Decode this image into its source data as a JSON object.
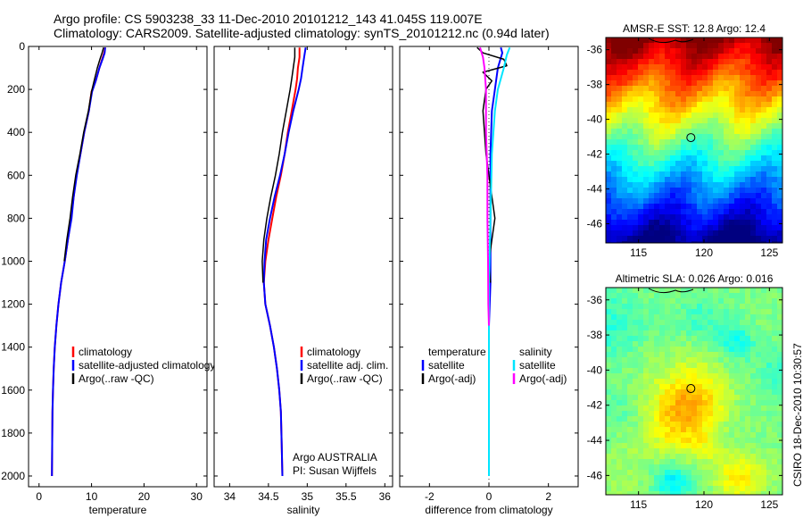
{
  "header": {
    "title_line1": "Argo profile: CS 5903238_33 11-Dec-2010 20101212_143 41.045S 119.007E",
    "title_line2": "Climatology: CARS2009. Satellite-adjusted climatology: synTS_20101212.nc (0.94d later)"
  },
  "side_label": "CSIRO 18-Dec-2010 10:30:57",
  "colors": {
    "climatology": "#ff0000",
    "satellite": "#0000ff",
    "argo": "#000000",
    "sat_diff": "#00e5ff",
    "argo_diff": "#ff00ff"
  },
  "chart_data": [
    {
      "type": "line",
      "xlabel": "temperature",
      "xlim": [
        -2,
        32
      ],
      "xticks": [
        0,
        10,
        20,
        30
      ],
      "ylim": [
        2050,
        0
      ],
      "yticks": [
        0,
        200,
        400,
        600,
        800,
        1000,
        1200,
        1400,
        1600,
        1800,
        2000
      ],
      "legend": [
        "climatology",
        "satellite-adjusted climatology",
        "Argo(..raw -QC)"
      ],
      "series": [
        {
          "name": "climatology",
          "color": "#ff0000",
          "width": 2,
          "x": [
            12.6,
            12.4,
            12.0,
            11.5,
            10.8,
            10.0,
            9.5,
            8.6,
            7.9,
            7.1,
            6.6,
            6.1,
            5.5,
            4.9,
            4.2,
            3.7,
            3.3,
            3.0,
            2.8,
            2.65,
            2.55,
            2.5,
            2.45
          ],
          "y": [
            5,
            30,
            60,
            100,
            160,
            210,
            300,
            400,
            500,
            600,
            700,
            800,
            900,
            1000,
            1100,
            1200,
            1300,
            1400,
            1500,
            1600,
            1700,
            1850,
            2000
          ]
        },
        {
          "name": "satellite-adjusted climatology",
          "color": "#0000ff",
          "width": 2,
          "x": [
            12.6,
            12.5,
            12.1,
            11.5,
            10.8,
            10.1,
            9.5,
            8.6,
            7.9,
            7.2,
            6.6,
            6.2,
            5.5,
            4.9,
            4.2,
            3.7,
            3.3,
            3.0,
            2.8,
            2.65,
            2.55,
            2.5,
            2.45
          ],
          "y": [
            5,
            30,
            60,
            100,
            160,
            210,
            300,
            400,
            500,
            600,
            700,
            800,
            900,
            1000,
            1100,
            1200,
            1300,
            1400,
            1500,
            1600,
            1700,
            1850,
            2000
          ]
        },
        {
          "name": "Argo(..raw -QC)",
          "color": "#000000",
          "width": 1.5,
          "x": [
            12.3,
            12.0,
            11.6,
            11.1,
            10.5,
            10.0,
            9.4,
            8.5,
            7.8,
            7.0,
            6.4,
            5.9,
            5.3,
            4.8
          ],
          "y": [
            5,
            30,
            60,
            100,
            160,
            210,
            300,
            400,
            500,
            600,
            700,
            800,
            900,
            1000
          ]
        }
      ]
    },
    {
      "type": "line",
      "xlabel": "salinity",
      "xlim": [
        33.8,
        36.1
      ],
      "xticks": [
        34,
        34.5,
        35,
        35.5,
        36
      ],
      "ylim": [
        2050,
        0
      ],
      "yticks": [
        0,
        200,
        400,
        600,
        800,
        1000,
        1200,
        1400,
        1600,
        1800,
        2000
      ],
      "legend": [
        "climatology",
        "satellite adj. clim.",
        "Argo(..raw -QC)"
      ],
      "annotation": [
        "Argo AUSTRALIA",
        "PI: Susan Wijffels"
      ],
      "series": [
        {
          "name": "climatology",
          "color": "#ff0000",
          "width": 2,
          "x": [
            34.9,
            34.9,
            34.88,
            34.87,
            34.85,
            34.8,
            34.75,
            34.71,
            34.66,
            34.6,
            34.55,
            34.5,
            34.46,
            34.44,
            34.46,
            34.52,
            34.57,
            34.61,
            34.64,
            34.66,
            34.67,
            34.68
          ],
          "y": [
            5,
            50,
            100,
            150,
            200,
            300,
            400,
            500,
            600,
            700,
            800,
            900,
            1000,
            1100,
            1200,
            1300,
            1400,
            1500,
            1600,
            1700,
            1850,
            2000
          ]
        },
        {
          "name": "satellite adj. clim.",
          "color": "#0000ff",
          "width": 2,
          "x": [
            34.98,
            34.96,
            34.94,
            34.92,
            34.89,
            34.82,
            34.76,
            34.71,
            34.65,
            34.58,
            34.52,
            34.47,
            34.45,
            34.44,
            34.46,
            34.52,
            34.57,
            34.61,
            34.64,
            34.66,
            34.67,
            34.68
          ],
          "y": [
            5,
            50,
            100,
            150,
            200,
            300,
            400,
            500,
            600,
            700,
            800,
            900,
            1000,
            1100,
            1200,
            1300,
            1400,
            1500,
            1600,
            1700,
            1850,
            2000
          ]
        },
        {
          "name": "Argo(..raw -QC)",
          "color": "#000000",
          "width": 1.5,
          "x": [
            34.84,
            34.84,
            34.82,
            34.8,
            34.78,
            34.73,
            34.68,
            34.64,
            34.59,
            34.53,
            34.48,
            34.44,
            34.42,
            34.43
          ],
          "y": [
            5,
            50,
            100,
            150,
            200,
            300,
            400,
            500,
            600,
            700,
            800,
            900,
            1000,
            1100
          ]
        }
      ]
    },
    {
      "type": "line",
      "xlabel": "difference from climatology",
      "xlim": [
        -3,
        3
      ],
      "xticks": [
        -2,
        0,
        2
      ],
      "ylim": [
        2050,
        0
      ],
      "yticks": [
        0,
        200,
        400,
        600,
        800,
        1000,
        1200,
        1400,
        1600,
        1800,
        2000
      ],
      "legend_titles": [
        "temperature",
        "salinity"
      ],
      "legend": [
        "satellite",
        "Argo(-adj)",
        "satellite",
        "Argo(-adj)"
      ],
      "series": [
        {
          "name": "satellite",
          "color": "#0000ff",
          "width": 2,
          "x": [
            0.4,
            0.45,
            0.3,
            0.2,
            0.1,
            0.05,
            0.05,
            0.05,
            0.05,
            0,
            0
          ],
          "y": [
            5,
            30,
            100,
            200,
            300,
            500,
            700,
            900,
            1100,
            1300,
            2000
          ]
        },
        {
          "name": "Argo(-adj)",
          "color": "#000000",
          "width": 1.5,
          "x": [
            -0.4,
            -0.2,
            0.5,
            0.6,
            -0.2,
            0.1,
            -0.1,
            -0.2,
            -0.1,
            0.1,
            0.2,
            0.1,
            0,
            0.05
          ],
          "y": [
            5,
            30,
            60,
            90,
            120,
            160,
            200,
            300,
            500,
            700,
            800,
            900,
            1000,
            1100
          ]
        },
        {
          "name": "satellite",
          "color": "#00e5ff",
          "width": 2,
          "x": [
            0.7,
            0.6,
            0.5,
            0.3,
            0.2,
            0.1,
            0.05,
            0,
            0
          ],
          "y": [
            5,
            40,
            100,
            200,
            300,
            500,
            800,
            1100,
            2000
          ]
        },
        {
          "name": "Argo(-adj)",
          "color": "#ff00ff",
          "width": 2,
          "x": [
            -0.3,
            -0.2,
            -0.15,
            -0.1,
            -0.1,
            -0.05,
            -0.05,
            -0.03,
            -0.02,
            0
          ],
          "y": [
            5,
            50,
            100,
            200,
            400,
            600,
            800,
            1000,
            1200,
            1300
          ]
        }
      ]
    },
    {
      "type": "heatmap",
      "title": "AMSR-E SST: 12.8 Argo: 12.4",
      "xlim": [
        112.5,
        126
      ],
      "xticks": [
        115,
        120,
        125
      ],
      "ylim": [
        -47.1,
        -35.3
      ],
      "yticks": [
        -36,
        -38,
        -40,
        -42,
        -44,
        -46
      ],
      "marker": {
        "x": 119.0,
        "y": -41.05
      },
      "field": "sst"
    },
    {
      "type": "heatmap",
      "title": "Altimetric SLA: 0.026 Argo: 0.016",
      "xlim": [
        112.5,
        126
      ],
      "xticks": [
        115,
        120,
        125
      ],
      "ylim": [
        -47.1,
        -35.3
      ],
      "yticks": [
        -36,
        -38,
        -40,
        -42,
        -44,
        -46
      ],
      "marker": {
        "x": 119.0,
        "y": -41.05
      },
      "field": "sla"
    }
  ]
}
